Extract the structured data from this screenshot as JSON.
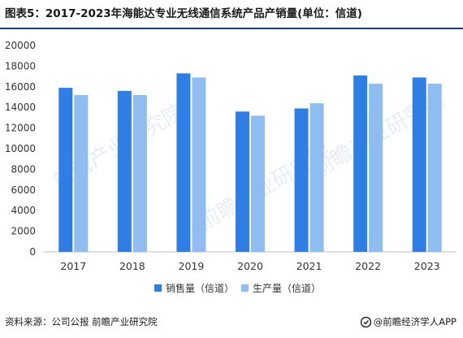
{
  "title": "图表5：2017-2023年海能达专业无线通信系统产品产销量(单位：信道)",
  "source": "资料来源：公司公报 前瞻产业研究院",
  "brand": "@前瞻经济学人APP",
  "watermark": "前瞻产业研究院",
  "chart_data": {
    "type": "bar",
    "categories": [
      "2017",
      "2018",
      "2019",
      "2020",
      "2021",
      "2022",
      "2023"
    ],
    "series": [
      {
        "name": "销售量（信道）",
        "color": "#2f7ee6",
        "values": [
          15900,
          15600,
          17300,
          13600,
          13900,
          17100,
          16900
        ]
      },
      {
        "name": "生产量（信道）",
        "color": "#8fbcf1",
        "values": [
          15200,
          15200,
          16900,
          13200,
          14400,
          16300,
          16300
        ]
      }
    ],
    "ylim": [
      0,
      20000
    ],
    "yticks": [
      0,
      2000,
      4000,
      6000,
      8000,
      10000,
      12000,
      14000,
      16000,
      18000,
      20000
    ],
    "grid": false,
    "legend_position": "bottom"
  }
}
